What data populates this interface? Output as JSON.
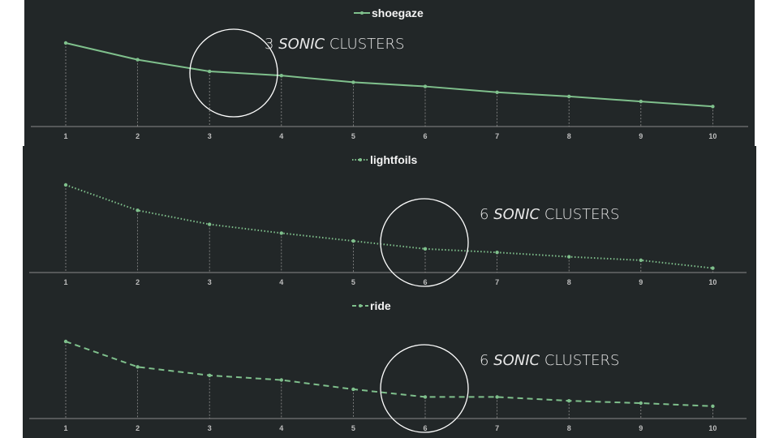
{
  "chart_data": [
    {
      "type": "line",
      "categories": [
        "1",
        "2",
        "3",
        "4",
        "5",
        "6",
        "7",
        "8",
        "9",
        "10"
      ],
      "series": [
        {
          "name": "shoegaze",
          "values": [
            100,
            80,
            66,
            61,
            53,
            48,
            41,
            36,
            30,
            24
          ]
        }
      ],
      "line_style": "solid",
      "color": "#7fc08c",
      "ylim": [
        0,
        108
      ],
      "legend_position": "top",
      "grid": false,
      "drop_lines": true,
      "annotation": {
        "number": "3",
        "emphasis": "SONIC",
        "rest": "CLUSTERS",
        "circled_category": "3"
      }
    },
    {
      "type": "line",
      "categories": [
        "1",
        "2",
        "3",
        "4",
        "5",
        "6",
        "7",
        "8",
        "9",
        "10"
      ],
      "series": [
        {
          "name": "lightfoils",
          "values": [
            100,
            71,
            55,
            45,
            36,
            27,
            23,
            18,
            14,
            5
          ]
        }
      ],
      "line_style": "dotted",
      "color": "#7fc08c",
      "ylim": [
        0,
        108
      ],
      "legend_position": "top",
      "grid": false,
      "drop_lines": true,
      "annotation": {
        "number": "6",
        "emphasis": "SONIC",
        "rest": "CLUSTERS",
        "circled_category": "6"
      }
    },
    {
      "type": "line",
      "categories": [
        "1",
        "2",
        "3",
        "4",
        "5",
        "6",
        "7",
        "8",
        "9",
        "10"
      ],
      "series": [
        {
          "name": "ride",
          "values": [
            100,
            67,
            56,
            50,
            38,
            28,
            28,
            23,
            20,
            16
          ]
        }
      ],
      "line_style": "dashed",
      "color": "#7fc08c",
      "ylim": [
        0,
        108
      ],
      "legend_position": "top",
      "grid": false,
      "drop_lines": true,
      "annotation": {
        "number": "6",
        "emphasis": "SONIC",
        "rest": "CLUSTERS",
        "circled_category": "6"
      }
    }
  ]
}
